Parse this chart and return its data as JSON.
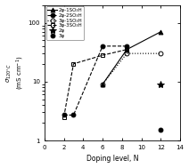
{
  "series": [
    {
      "label": "2φ-1SO₃H",
      "x": [
        6,
        8.5,
        12
      ],
      "y": [
        9,
        35,
        70
      ],
      "color": "black",
      "marker": "^",
      "fillstyle": "full",
      "linestyle": "-",
      "linewidth": 0.8,
      "markersize": 3.5
    },
    {
      "label": "2φ-2SO₃H",
      "x": [
        2,
        3,
        6,
        8.5
      ],
      "y": [
        2.7,
        2.7,
        40,
        40
      ],
      "color": "black",
      "marker": "o",
      "fillstyle": "full",
      "linestyle": "--",
      "linewidth": 0.8,
      "markersize": 3.5
    },
    {
      "label": "3φ-1SO₃H",
      "x": [
        6,
        8.5,
        12
      ],
      "y": [
        9,
        30,
        30
      ],
      "color": "black",
      "marker": "o",
      "fillstyle": "none",
      "linestyle": ":",
      "linewidth": 0.8,
      "markersize": 3.5
    },
    {
      "label": "3φ-3SO₃H",
      "x": [
        2,
        3,
        6,
        8.5
      ],
      "y": [
        2.5,
        20,
        28,
        35
      ],
      "color": "black",
      "marker": "s",
      "fillstyle": "none",
      "linestyle": "--",
      "linewidth": 0.8,
      "markersize": 3.0
    },
    {
      "label": "2φ",
      "x": [
        12
      ],
      "y": [
        9
      ],
      "color": "black",
      "marker": "*",
      "fillstyle": "full",
      "linestyle": "none",
      "linewidth": 0,
      "markersize": 6
    },
    {
      "label": "3φ",
      "x": [
        12
      ],
      "y": [
        1.5
      ],
      "color": "black",
      "marker": "o",
      "fillstyle": "full",
      "linestyle": "none",
      "linewidth": 0,
      "markersize": 3.5
    }
  ],
  "xlabel": "Doping level, N",
  "ylabel": "σ₁₂₀°C (mS cm⁻¹)",
  "xlim": [
    0,
    14
  ],
  "ylim_log": [
    1,
    200
  ],
  "xticks": [
    0,
    2,
    4,
    6,
    8,
    10,
    12,
    14
  ],
  "yticks": [
    1,
    10,
    100
  ],
  "ytick_labels": [
    "1",
    "10",
    "100"
  ],
  "figsize": [
    2.12,
    1.89
  ],
  "dpi": 100
}
